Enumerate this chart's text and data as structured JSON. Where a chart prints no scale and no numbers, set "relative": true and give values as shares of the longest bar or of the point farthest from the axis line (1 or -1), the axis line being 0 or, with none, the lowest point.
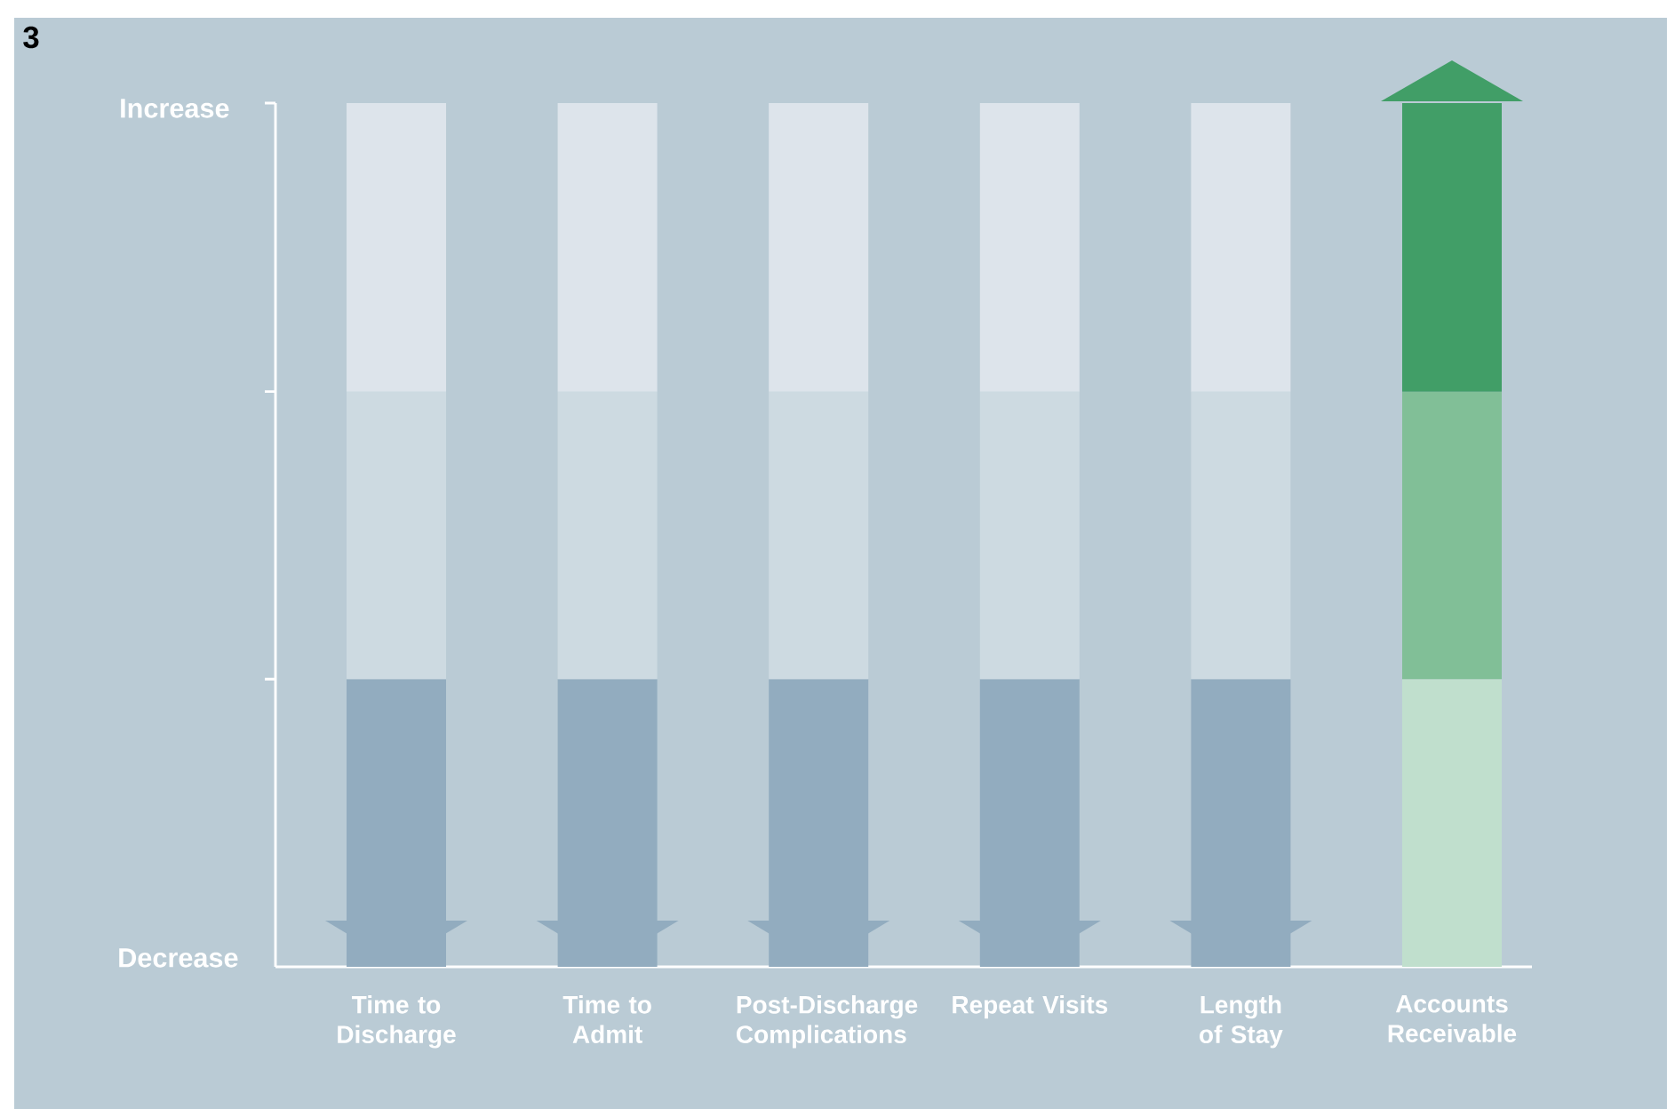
{
  "chart_data": {
    "type": "bar",
    "stacked": true,
    "relative": true,
    "categories": [
      "Time to Discharge",
      "Time to Admit",
      "Post-Discharge Complications",
      "Repeat Visits",
      "Length of Stay",
      "Accounts Receivable"
    ],
    "series": [
      {
        "colors": [
          "#92acbf",
          "#92acbf",
          "#92acbf",
          "#92acbf",
          "#92acbf",
          "#c0dfcd"
        ],
        "values": [
          0.333,
          0.333,
          0.333,
          0.333,
          0.333,
          0.333
        ]
      },
      {
        "colors": [
          "#cddae1",
          "#cddae1",
          "#cddae1",
          "#cddae1",
          "#cddae1",
          "#81bf97"
        ],
        "values": [
          0.333,
          0.333,
          0.333,
          0.333,
          0.333,
          0.333
        ]
      },
      {
        "colors": [
          "#dde4eb",
          "#dde4eb",
          "#dde4eb",
          "#dde4eb",
          "#dde4eb",
          "#419e67"
        ],
        "values": [
          0.334,
          0.334,
          0.334,
          0.334,
          0.334,
          0.334
        ]
      }
    ],
    "annotations": [
      "3",
      "Increase",
      "Decrease"
    ]
  }
}
